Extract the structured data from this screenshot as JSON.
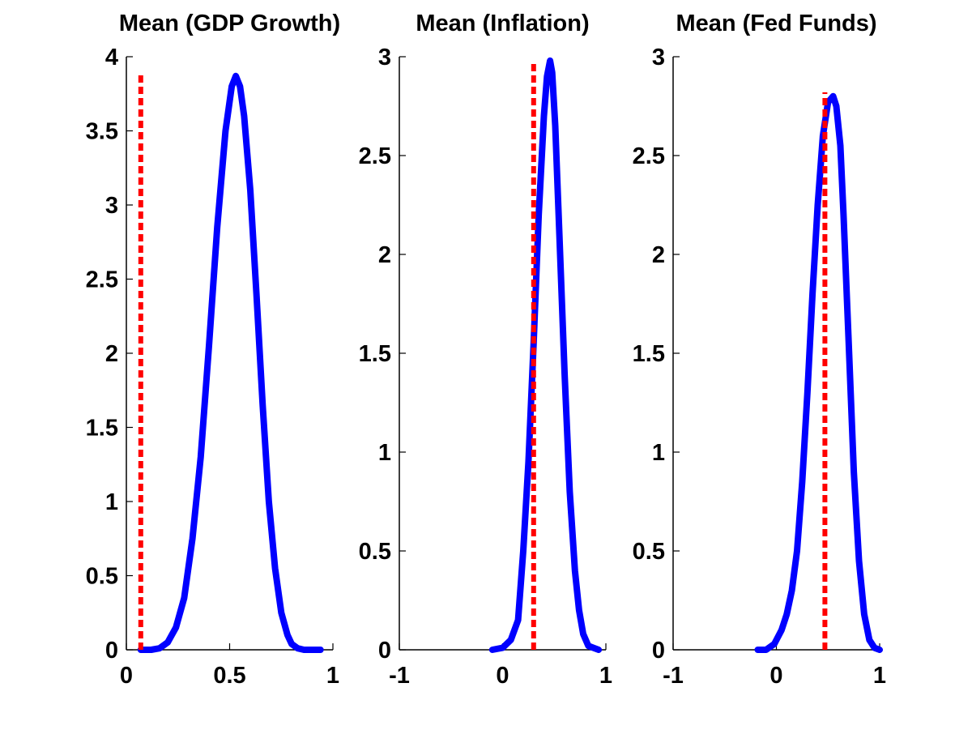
{
  "chart_data": [
    {
      "type": "line",
      "title": "Mean (GDP Growth)",
      "xlabel": "",
      "ylabel": "",
      "xlim": [
        0,
        1
      ],
      "ylim": [
        0,
        4
      ],
      "xticks": [
        0,
        0.5,
        1
      ],
      "xtick_labels": [
        "0",
        "0.5",
        "1"
      ],
      "yticks": [
        0,
        0.5,
        1,
        1.5,
        2,
        2.5,
        3,
        3.5,
        4
      ],
      "ytick_labels": [
        "0",
        "0.5",
        "1",
        "1.5",
        "2",
        "2.5",
        "3",
        "3.5",
        "4"
      ],
      "grid": false,
      "series": [
        {
          "style": "solid",
          "color": "#0000ff",
          "x": [
            0.07,
            0.12,
            0.16,
            0.2,
            0.24,
            0.28,
            0.32,
            0.36,
            0.4,
            0.44,
            0.48,
            0.51,
            0.53,
            0.55,
            0.57,
            0.6,
            0.63,
            0.66,
            0.69,
            0.72,
            0.75,
            0.78,
            0.8,
            0.83,
            0.86,
            0.89,
            0.94
          ],
          "y": [
            0.0,
            0.0,
            0.01,
            0.05,
            0.15,
            0.35,
            0.75,
            1.3,
            2.05,
            2.85,
            3.5,
            3.8,
            3.87,
            3.8,
            3.6,
            3.1,
            2.4,
            1.65,
            1.0,
            0.55,
            0.25,
            0.1,
            0.04,
            0.01,
            0.0,
            0.0,
            0.0
          ]
        },
        {
          "style": "dashed",
          "color": "#ff0000",
          "x": [
            0.07,
            0.07
          ],
          "y": [
            0,
            3.88
          ]
        }
      ]
    },
    {
      "type": "line",
      "title": "Mean (Inflation)",
      "xlabel": "",
      "ylabel": "",
      "xlim": [
        -1,
        1
      ],
      "ylim": [
        0,
        3
      ],
      "xticks": [
        -1,
        0,
        1
      ],
      "xtick_labels": [
        "-1",
        "0",
        "1"
      ],
      "yticks": [
        0,
        0.5,
        1,
        1.5,
        2,
        2.5,
        3
      ],
      "ytick_labels": [
        "0",
        "0.5",
        "1",
        "1.5",
        "2",
        "2.5",
        "3"
      ],
      "grid": false,
      "series": [
        {
          "style": "solid",
          "color": "#0000ff",
          "x": [
            -0.1,
            0.0,
            0.08,
            0.15,
            0.2,
            0.25,
            0.3,
            0.35,
            0.4,
            0.43,
            0.46,
            0.48,
            0.51,
            0.55,
            0.6,
            0.65,
            0.7,
            0.74,
            0.78,
            0.83,
            0.88,
            0.93
          ],
          "y": [
            0.0,
            0.01,
            0.05,
            0.15,
            0.5,
            0.95,
            1.55,
            2.2,
            2.7,
            2.9,
            2.98,
            2.92,
            2.65,
            2.1,
            1.4,
            0.8,
            0.4,
            0.2,
            0.08,
            0.02,
            0.01,
            0.0
          ]
        },
        {
          "style": "dashed",
          "color": "#ff0000",
          "x": [
            0.3,
            0.3
          ],
          "y": [
            0,
            2.98
          ]
        }
      ]
    },
    {
      "type": "line",
      "title": "Mean (Fed Funds)",
      "xlabel": "",
      "ylabel": "",
      "xlim": [
        -1,
        1
      ],
      "ylim": [
        0,
        3
      ],
      "xticks": [
        -1,
        0,
        1
      ],
      "xtick_labels": [
        "-1",
        "0",
        "1"
      ],
      "yticks": [
        0,
        0.5,
        1,
        1.5,
        2,
        2.5,
        3
      ],
      "ytick_labels": [
        "0",
        "0.5",
        "1",
        "1.5",
        "2",
        "2.5",
        "3"
      ],
      "grid": false,
      "series": [
        {
          "style": "solid",
          "color": "#0000ff",
          "x": [
            -0.18,
            -0.1,
            -0.02,
            0.05,
            0.1,
            0.15,
            0.2,
            0.25,
            0.3,
            0.35,
            0.4,
            0.45,
            0.5,
            0.55,
            0.58,
            0.62,
            0.65,
            0.7,
            0.75,
            0.8,
            0.85,
            0.9,
            0.95,
            1.0
          ],
          "y": [
            0.0,
            0.0,
            0.03,
            0.1,
            0.18,
            0.3,
            0.5,
            0.85,
            1.3,
            1.8,
            2.25,
            2.6,
            2.77,
            2.8,
            2.75,
            2.55,
            2.2,
            1.55,
            0.9,
            0.45,
            0.18,
            0.05,
            0.01,
            0.0
          ]
        },
        {
          "style": "dashed",
          "color": "#ff0000",
          "x": [
            0.47,
            0.47
          ],
          "y": [
            0,
            2.82
          ]
        }
      ]
    }
  ]
}
